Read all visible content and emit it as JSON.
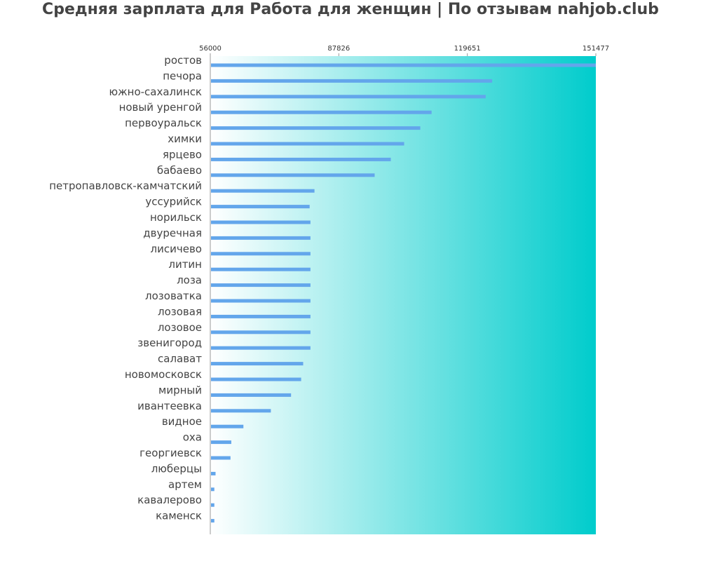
{
  "chart_data": {
    "type": "bar",
    "orientation": "horizontal",
    "title": "Средняя зарплата для Работа для женщин | По отзывам nahjob.club",
    "xlim": [
      56000,
      151477
    ],
    "xticks": [
      "56000",
      "87826",
      "119651",
      "151477"
    ],
    "grid": false,
    "legend": "none",
    "categories": [
      "ростов",
      "печора",
      "южно-сахалинск",
      "новый уренгой",
      "первоуральск",
      "химки",
      "ярцево",
      "бабаево",
      "петропавловск-камчатский",
      "уссурийск",
      "норильск",
      "двуречная",
      "лисичево",
      "литин",
      "лоза",
      "лозоватка",
      "лозовая",
      "лозовое",
      "звенигород",
      "салават",
      "новомосковск",
      "мирный",
      "ивантеевка",
      "видное",
      "оха",
      "георгиевск",
      "люберцы",
      "артем",
      "кавалерово",
      "каменск"
    ],
    "values": [
      151477,
      125800,
      124200,
      110800,
      108000,
      104000,
      100700,
      96700,
      81800,
      80600,
      80800,
      80800,
      80800,
      80800,
      80800,
      80800,
      80800,
      80800,
      80800,
      79000,
      78500,
      76000,
      71000,
      64200,
      61200,
      61000,
      57300,
      57000,
      57000,
      57000
    ],
    "colors": {
      "bar": "#63a6eb",
      "gradient_start": "#ffffff",
      "gradient_end": "#00cccc",
      "axis": "#999999"
    }
  }
}
